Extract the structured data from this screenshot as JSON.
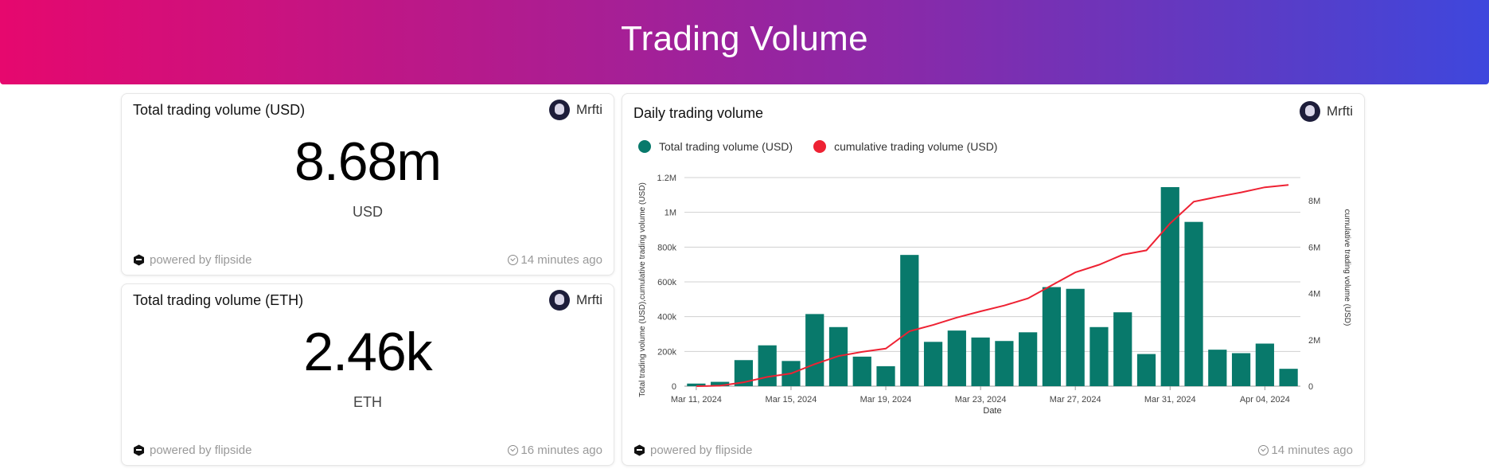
{
  "header": {
    "title": "Trading Volume"
  },
  "cards": {
    "usd": {
      "title": "Total trading volume (USD)",
      "author": "Mrfti",
      "value": "8.68m",
      "unit": "USD",
      "powered": "powered by flipside",
      "updated": "14 minutes ago"
    },
    "eth": {
      "title": "Total trading volume (ETH)",
      "author": "Mrfti",
      "value": "2.46k",
      "unit": "ETH",
      "powered": "powered by flipside",
      "updated": "16 minutes ago"
    },
    "daily": {
      "title": "Daily trading volume",
      "author": "Mrfti",
      "powered": "powered by flipside",
      "updated": "14 minutes ago"
    }
  },
  "colors": {
    "bar": "#08796b",
    "line": "#ee2233"
  },
  "chart_data": {
    "type": "bar",
    "title": "Daily trading volume",
    "xlabel": "Date",
    "ylabel": "Total trading volume (USD),cumulative trading volume (USD)",
    "y2label": "cumulative trading volume (USD)",
    "ylim": [
      0,
      1200000
    ],
    "y2lim": [
      0,
      9000000
    ],
    "yticks": [
      "0",
      "200k",
      "400k",
      "600k",
      "800k",
      "1M",
      "1.2M"
    ],
    "y2ticks": [
      "0",
      "2M",
      "4M",
      "6M",
      "8M"
    ],
    "xticks": [
      "Mar 11, 2024",
      "Mar 15, 2024",
      "Mar 19, 2024",
      "Mar 23, 2024",
      "Mar 27, 2024",
      "Mar 31, 2024",
      "Apr 04, 2024"
    ],
    "legend": [
      "Total trading volume (USD)",
      "cumulative trading volume (USD)"
    ],
    "categories": [
      "Mar 11",
      "Mar 12",
      "Mar 13",
      "Mar 14",
      "Mar 15",
      "Mar 16",
      "Mar 17",
      "Mar 18",
      "Mar 19",
      "Mar 20",
      "Mar 21",
      "Mar 22",
      "Mar 23",
      "Mar 24",
      "Mar 25",
      "Mar 26",
      "Mar 27",
      "Mar 28",
      "Mar 29",
      "Mar 30",
      "Mar 31",
      "Apr 01",
      "Apr 02",
      "Apr 03",
      "Apr 04",
      "Apr 05"
    ],
    "series": [
      {
        "name": "Total trading volume (USD)",
        "type": "bar",
        "axis": "left",
        "values": [
          15000,
          25000,
          150000,
          235000,
          145000,
          415000,
          340000,
          170000,
          115000,
          755000,
          255000,
          320000,
          280000,
          260000,
          310000,
          570000,
          560000,
          340000,
          425000,
          185000,
          1145000,
          945000,
          210000,
          190000,
          245000,
          100000
        ]
      },
      {
        "name": "cumulative trading volume (USD)",
        "type": "line",
        "axis": "right",
        "values": [
          0,
          20000,
          170000,
          400000,
          550000,
          950000,
          1300000,
          1480000,
          1620000,
          2370000,
          2640000,
          2960000,
          3230000,
          3480000,
          3790000,
          4350000,
          4910000,
          5240000,
          5670000,
          5860000,
          7020000,
          7960000,
          8170000,
          8360000,
          8580000,
          8680000
        ]
      }
    ]
  }
}
